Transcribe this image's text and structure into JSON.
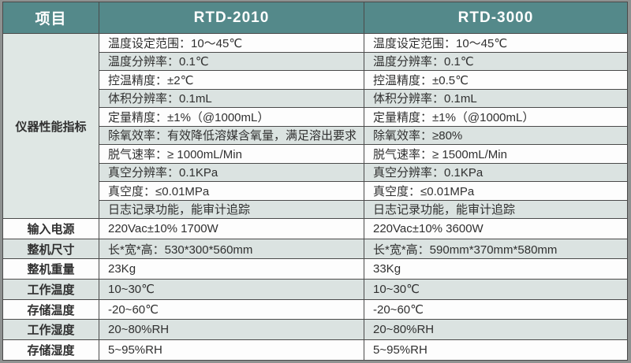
{
  "colors": {
    "header_bg": "#54898a",
    "header_text": "#ffffff",
    "row_stripe": "#dbe3e1",
    "row_white": "#fdfdfd",
    "group_bg": "#dfe7e4",
    "grid": "#4a4a4a",
    "frame": "#8e9190",
    "text": "#303030"
  },
  "table": {
    "header": {
      "item": "项目",
      "rtd2010": "RTD-2010",
      "rtd3000": "RTD-3000"
    },
    "perf_group_label": "仪器性能指标",
    "perf_rows": [
      {
        "rtd2010": "温度设定范围：10～45℃",
        "rtd3000": "温度设定范围：10～45℃"
      },
      {
        "rtd2010": "温度分辨率：0.1℃",
        "rtd3000": "温度分辨率：0.1℃"
      },
      {
        "rtd2010": "控温精度：±2℃",
        "rtd3000": "控温精度：±0.5℃"
      },
      {
        "rtd2010": "体积分辨率：0.1mL",
        "rtd3000": "体积分辨率：0.1mL"
      },
      {
        "rtd2010": "定量精度：±1%（@1000mL）",
        "rtd3000": "定量精度：±1%（@1000mL）"
      },
      {
        "rtd2010": "除氧效率：有效降低溶媒含氧量，满足溶出要求",
        "rtd3000": "除氧效率：≥80%"
      },
      {
        "rtd2010": "脱气速率：≥ 1000mL/Min",
        "rtd3000": "脱气速率：≥ 1500mL/Min"
      },
      {
        "rtd2010": "真空分辨率：0.1KPa",
        "rtd3000": "真空分辨率：0.1KPa"
      },
      {
        "rtd2010": "真空度：≤0.01MPa",
        "rtd3000": "真空度：≤0.01MPa"
      },
      {
        "rtd2010": "日志记录功能，能审计追踪",
        "rtd3000": "日志记录功能，能审计追踪"
      }
    ],
    "spec_rows": [
      {
        "label": "输入电源",
        "rtd2010": "220Vac±10% 1700W",
        "rtd3000": "220Vac±10% 3600W"
      },
      {
        "label": "整机尺寸",
        "rtd2010": "长*宽*高：530*300*560mm",
        "rtd3000": "长*宽*高：590mm*370mm*580mm"
      },
      {
        "label": "整机重量",
        "rtd2010": "23Kg",
        "rtd3000": "33Kg"
      },
      {
        "label": "工作温度",
        "rtd2010": "10~30℃",
        "rtd3000": "10~30℃"
      },
      {
        "label": "存储温度",
        "rtd2010": "-20~60℃",
        "rtd3000": "-20~60℃"
      },
      {
        "label": "工作湿度",
        "rtd2010": "20~80%RH",
        "rtd3000": "20~80%RH"
      },
      {
        "label": "存储湿度",
        "rtd2010": "5~95%RH",
        "rtd3000": "5~95%RH"
      }
    ]
  }
}
